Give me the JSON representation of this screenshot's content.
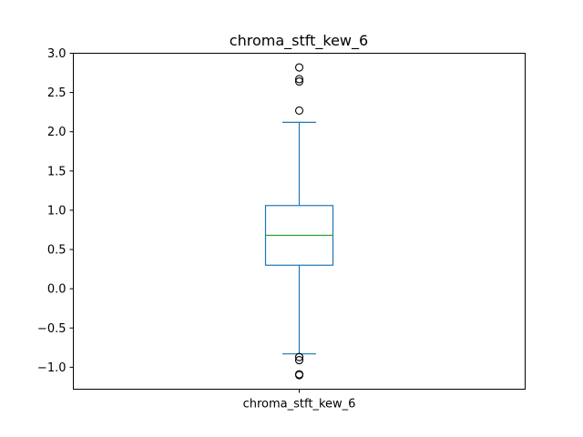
{
  "chart_data": {
    "type": "box",
    "title": "chroma_stft_kew_6",
    "categories": [
      "chroma_stft_kew_6"
    ],
    "ylim": [
      -1.28,
      3.0
    ],
    "yticks": [
      -1.0,
      -0.5,
      0.0,
      0.5,
      1.0,
      1.5,
      2.0,
      2.5,
      3.0
    ],
    "ytick_labels": [
      "−1.0",
      "−0.5",
      "0.0",
      "0.5",
      "1.0",
      "1.5",
      "2.0",
      "2.5",
      "3.0"
    ],
    "grid": false,
    "box": {
      "whisker_low": -0.83,
      "q1": 0.3,
      "median": 0.68,
      "q3": 1.06,
      "whisker_high": 2.12,
      "outliers": [
        2.82,
        2.67,
        2.64,
        2.27,
        -0.87,
        -0.91,
        -1.09,
        -1.1
      ]
    },
    "colors": {
      "box": "#1f77b4",
      "median": "#2ca02c",
      "outlier": "#000000"
    }
  }
}
